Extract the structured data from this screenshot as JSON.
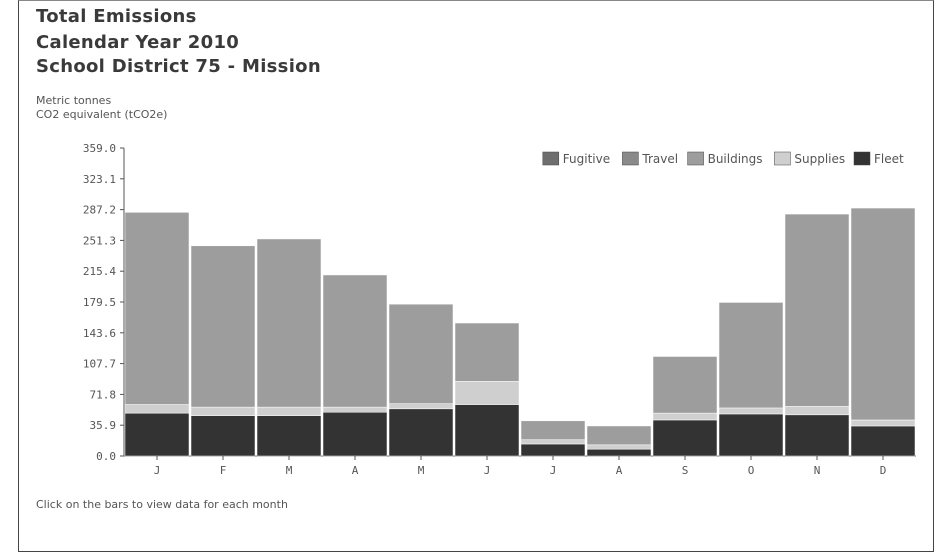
{
  "header": {
    "title_line1": "Total Emissions",
    "title_line2": "Calendar Year 2010",
    "title_line3": "School District 75 - Mission",
    "unit_line1": "Metric tonnes",
    "unit_line2": "CO2 equivalent (tCO2e)"
  },
  "footer": {
    "note": "Click on the bars to view data for each month"
  },
  "colors": {
    "Fugitive": "#6e6e6e",
    "Travel": "#8a8a8a",
    "Buildings": "#9d9d9d",
    "Supplies": "#cfcfcf",
    "Fleet": "#333333",
    "axis": "#555555"
  },
  "chart_data": {
    "type": "bar",
    "stacked": true,
    "categories": [
      "J",
      "F",
      "M",
      "A",
      "M",
      "J",
      "J",
      "A",
      "S",
      "O",
      "N",
      "D"
    ],
    "y_ticks": [
      "0.0",
      "35.9",
      "71.8",
      "107.7",
      "143.6",
      "179.5",
      "215.4",
      "251.3",
      "287.2",
      "323.1",
      "359.0"
    ],
    "ylim": [
      0,
      359
    ],
    "legend": {
      "placement": "top-right",
      "entries": [
        "Fugitive",
        "Travel",
        "Buildings",
        "Supplies",
        "Fleet"
      ]
    },
    "series": [
      {
        "name": "Fleet",
        "values": [
          50,
          47,
          47,
          51,
          55,
          60,
          14,
          8,
          42,
          49,
          48,
          35
        ]
      },
      {
        "name": "Supplies",
        "values": [
          10,
          10,
          10,
          6,
          6,
          27,
          5,
          5,
          8,
          7,
          10,
          7
        ]
      },
      {
        "name": "Buildings",
        "values": [
          224,
          188,
          196,
          154,
          116,
          68,
          22,
          22,
          66,
          123,
          224,
          247
        ]
      },
      {
        "name": "Travel",
        "values": [
          0,
          0,
          0,
          0,
          0,
          0,
          0,
          0,
          0,
          0,
          0,
          0
        ]
      },
      {
        "name": "Fugitive",
        "values": [
          0,
          0,
          0,
          0,
          0,
          0,
          0,
          0,
          0,
          0,
          0,
          0
        ]
      }
    ]
  }
}
